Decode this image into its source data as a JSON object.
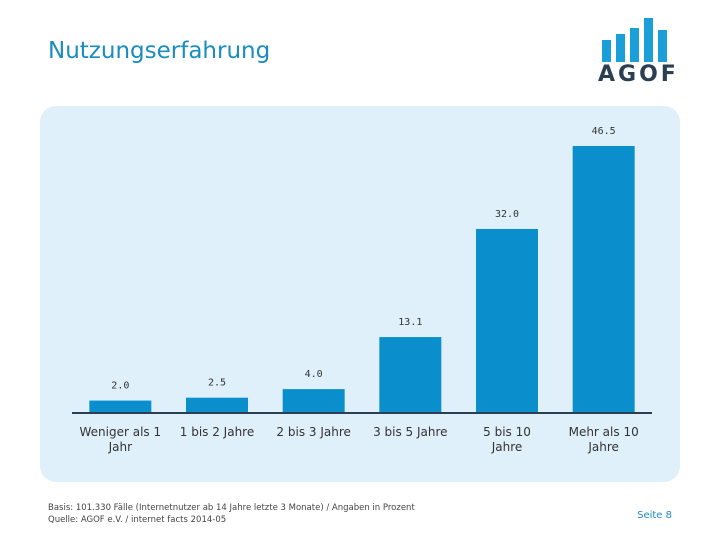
{
  "header": {
    "title": "Nutzungserfahrung"
  },
  "logo": {
    "text": "AGOF",
    "bar_color": "#1a9fd8",
    "text_color": "#2b3f52"
  },
  "colors": {
    "bar": "#0a8fcc",
    "panel": "#dff0fa",
    "axis": "#2b3f52",
    "title": "#1a8cc0"
  },
  "chart_data": {
    "type": "bar",
    "title": "",
    "xlabel": "",
    "ylabel": "",
    "categories": [
      "Weniger als 1 Jahr",
      "1 bis 2 Jahre",
      "2 bis 3 Jahre",
      "3 bis 5 Jahre",
      "5 bis 10 Jahre",
      "Mehr als 10 Jahre"
    ],
    "values": [
      2.0,
      2.5,
      4.0,
      13.1,
      32.0,
      46.5
    ],
    "value_labels": [
      "2.0",
      "2.5",
      "4.0",
      "13.1",
      "32.0",
      "46.5"
    ],
    "ylim": [
      0,
      50
    ],
    "grid": false,
    "legend": "none"
  },
  "footer": {
    "basis": "Basis: 101.330 Fälle (Internetnutzer ab 14 Jahre letzte 3 Monate) / Angaben in Prozent",
    "source": "Quelle: AGOF e.V. / internet facts 2014-05",
    "page": "Seite 8"
  }
}
